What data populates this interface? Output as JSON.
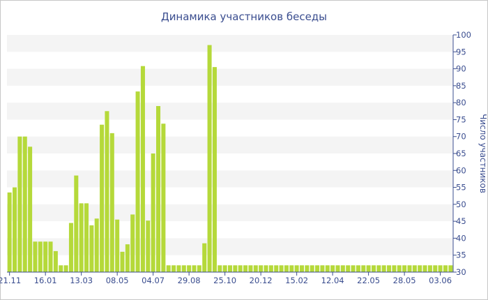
{
  "chart_data": {
    "type": "bar",
    "title": "Динамика участников беседы",
    "ylabel": "Число участников",
    "ylim": [
      30,
      100
    ],
    "yticks": [
      30,
      35,
      40,
      45,
      50,
      55,
      60,
      65,
      70,
      75,
      80,
      85,
      90,
      95,
      100
    ],
    "xtick_labels": [
      "21.11",
      "16.01",
      "13.03",
      "08.05",
      "04.07",
      "29.08",
      "25.10",
      "20.12",
      "15.02",
      "12.04",
      "22.05",
      "28.05",
      "03.06"
    ],
    "xtick_bar_index": [
      0,
      7,
      14,
      21,
      28,
      35,
      42,
      49,
      56,
      63,
      70,
      77,
      84
    ],
    "values": [
      53.5,
      55,
      70,
      70,
      67,
      39,
      39,
      39,
      39,
      36.2,
      32,
      32,
      44.5,
      58.5,
      50.3,
      50.3,
      43.8,
      45.8,
      73.5,
      77.5,
      71,
      45.5,
      36,
      38.2,
      47,
      83.3,
      90.8,
      45.2,
      65,
      79,
      73.8,
      32,
      32,
      32,
      32,
      32,
      32,
      32,
      38.5,
      97,
      90.5,
      32,
      32,
      32,
      32,
      32,
      32,
      32,
      32,
      32,
      32,
      32,
      32,
      32,
      32,
      32,
      32,
      32,
      32,
      32,
      32,
      32,
      32,
      32,
      32,
      32,
      32,
      32,
      32,
      32,
      32,
      32,
      32,
      32,
      32,
      32,
      32,
      32,
      32,
      32,
      32,
      32,
      32,
      32,
      32,
      32,
      32
    ],
    "bar_color": "#b5d93a",
    "text_color": "#3a4d8f",
    "band_color": "#f4f4f4",
    "grid": "alternating horizontal bands",
    "y_axis_position": "right"
  }
}
